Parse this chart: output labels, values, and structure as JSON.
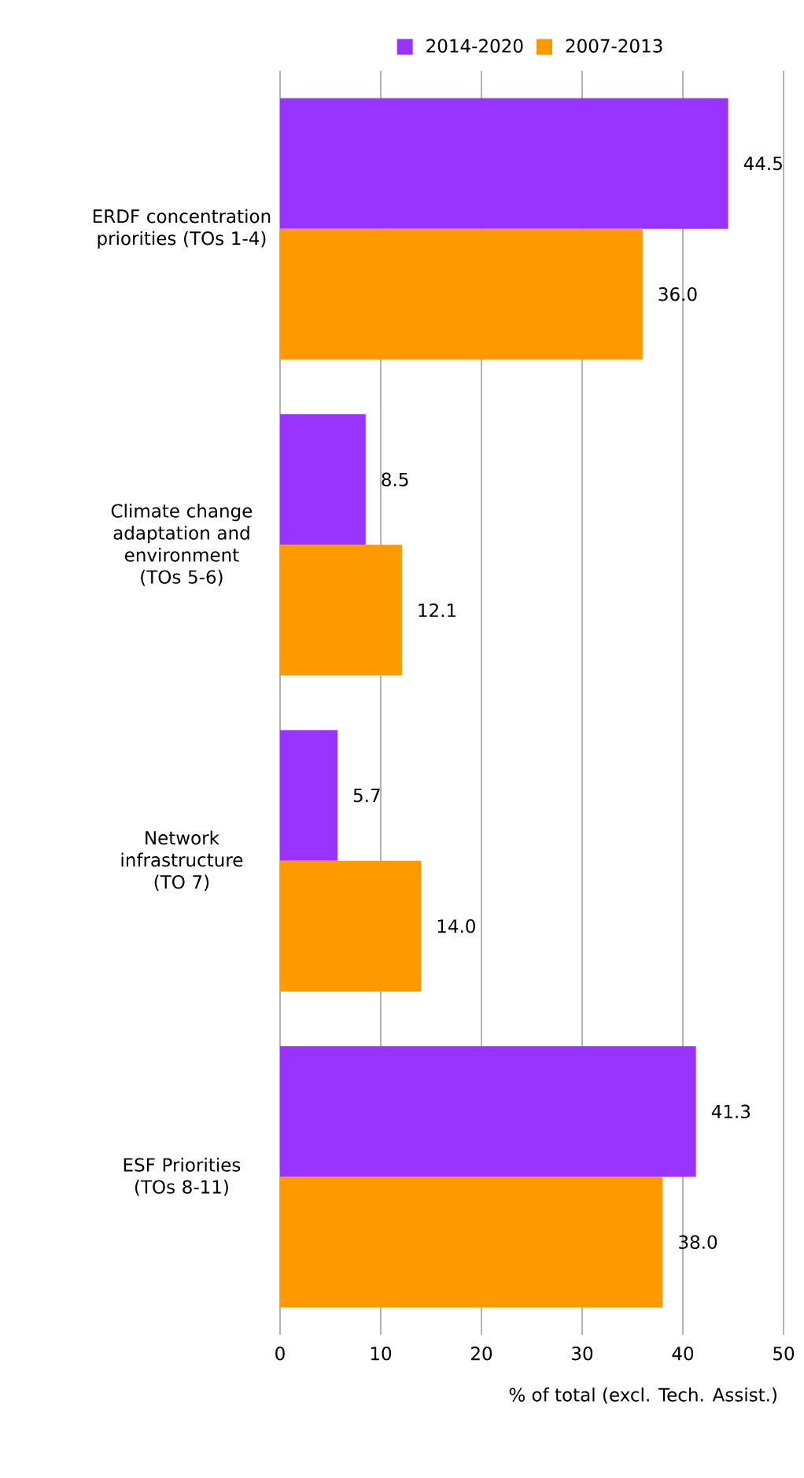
{
  "chart_data": {
    "type": "bar",
    "orientation": "horizontal",
    "categories": [
      "ERDF concentration priorities (TOs 1-4)",
      "Climate change adaptation and environment (TOs 5-6)",
      "Network infrastructure (TO 7)",
      "ESF Priorities (TOs 8-11)"
    ],
    "series": [
      {
        "name": "2014-2020",
        "color": "#9933ff",
        "values": [
          44.5,
          8.5,
          5.7,
          41.3
        ],
        "value_labels": [
          "44.5",
          "8.5",
          "5.7",
          "41.3"
        ]
      },
      {
        "name": "2007-2013",
        "color": "#ff9900",
        "values": [
          36.0,
          12.1,
          14.0,
          38.0
        ],
        "value_labels": [
          "36.0",
          "12.1",
          "14.0",
          "38.0"
        ]
      }
    ],
    "xlim": [
      0,
      50
    ],
    "xticks": [
      0,
      10,
      20,
      30,
      40,
      50
    ],
    "xlabel": "% of total (excl. Tech. Assist.)",
    "grid": "x",
    "legend": "top"
  }
}
